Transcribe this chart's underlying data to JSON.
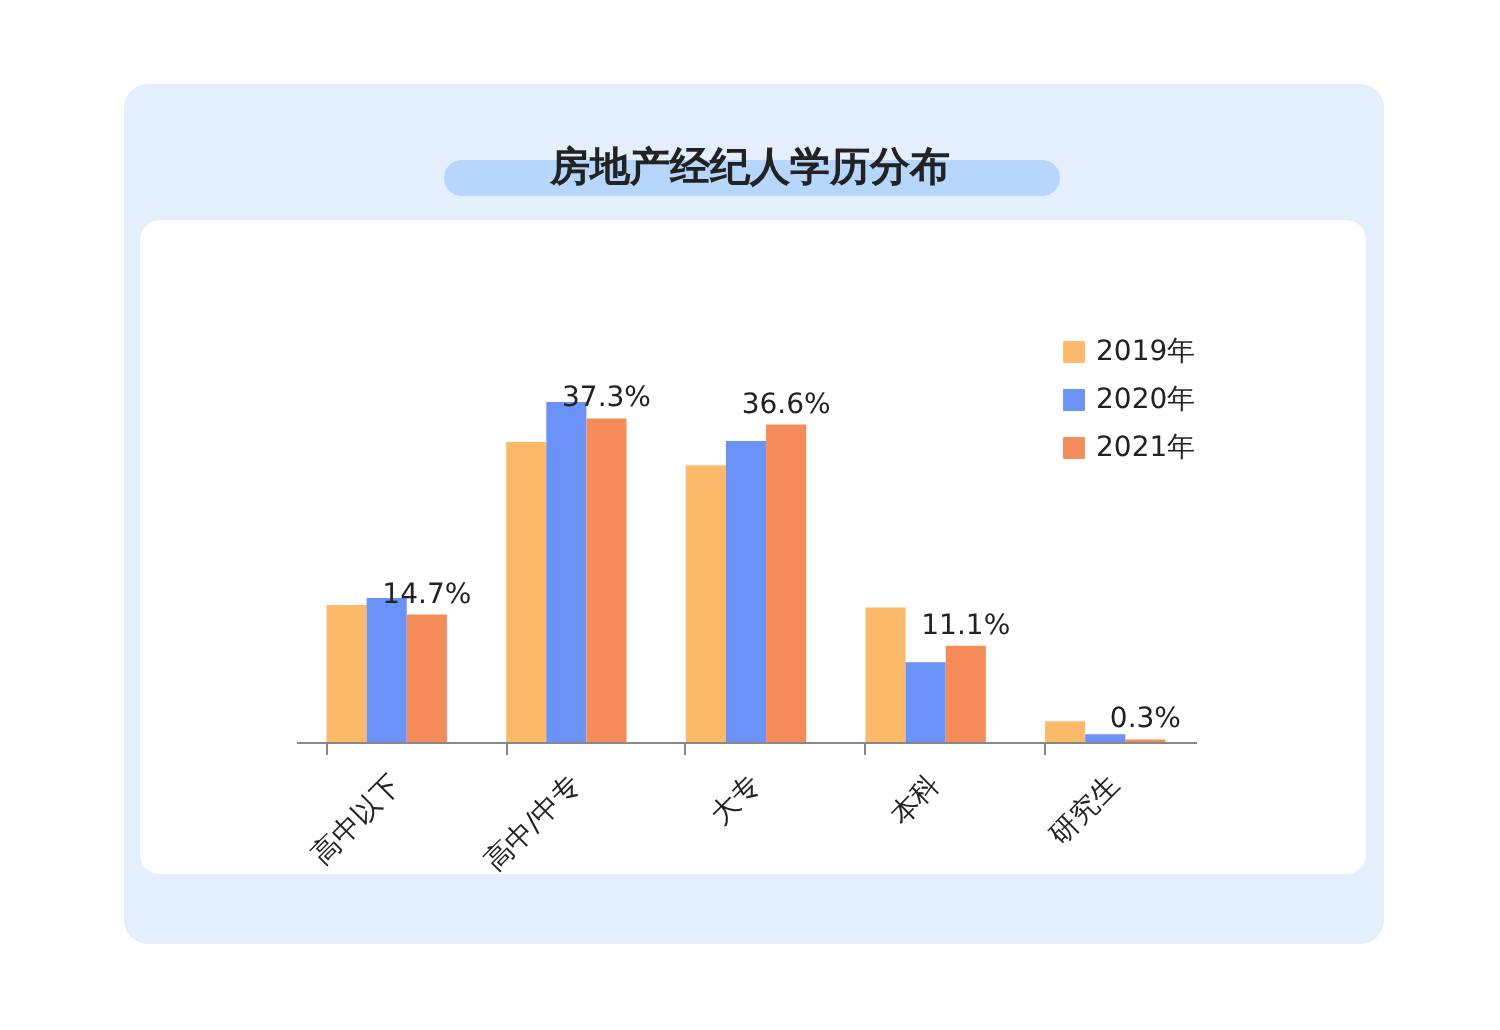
{
  "chart_data": {
    "type": "bar",
    "title": "房地产经纪人学历分布",
    "categories": [
      "高中以下",
      "高中/中专",
      "大专",
      "本科",
      "研究生"
    ],
    "series": [
      {
        "name": "2019年",
        "color": "#fdb96a",
        "values": [
          15.8,
          34.6,
          31.9,
          15.5,
          2.4
        ]
      },
      {
        "name": "2020年",
        "color": "#6b92f7",
        "values": [
          16.6,
          39.2,
          34.7,
          9.2,
          0.9
        ]
      },
      {
        "name": "2021年",
        "color": "#f58b58",
        "values": [
          14.7,
          37.3,
          36.6,
          11.1,
          0.3
        ],
        "value_labels": [
          "14.7%",
          "37.3%",
          "36.6%",
          "11.1%",
          "0.3%"
        ]
      }
    ],
    "legend": "top right",
    "grid": false
  }
}
